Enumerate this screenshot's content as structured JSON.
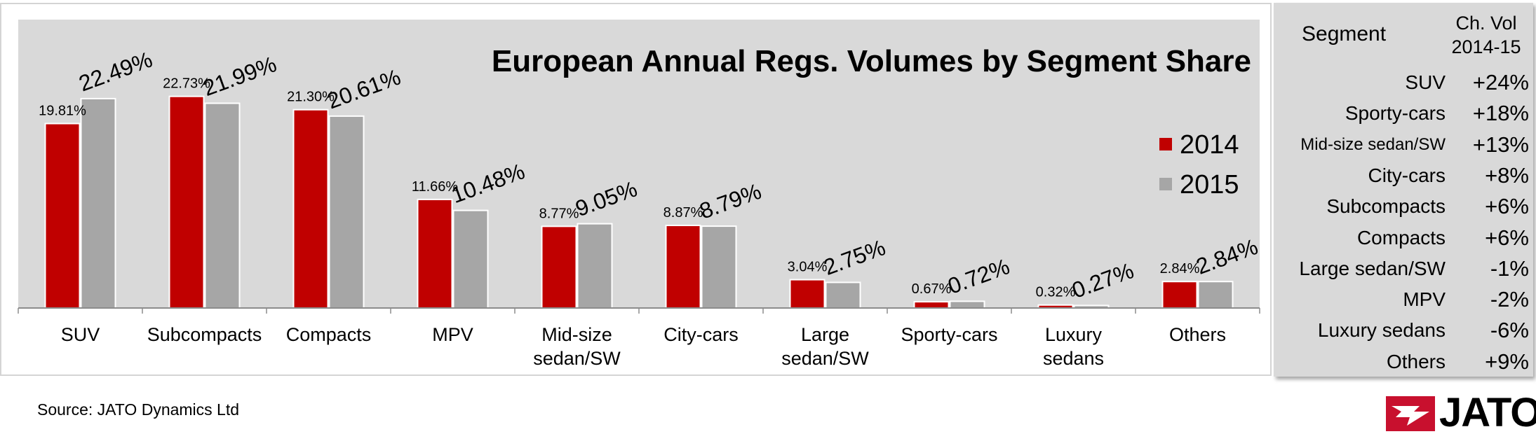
{
  "chart_data": {
    "type": "bar",
    "title": "European Annual Regs. Volumes by Segment Share",
    "categories": [
      "SUV",
      "Subcompacts",
      "Compacts",
      "MPV",
      "Mid-size sedan/SW",
      "City-cars",
      "Large sedan/SW",
      "Sporty-cars",
      "Luxury sedans",
      "Others"
    ],
    "category_labels": [
      [
        "SUV"
      ],
      [
        "Subcompacts"
      ],
      [
        "Compacts"
      ],
      [
        "MPV"
      ],
      [
        "Mid-size",
        "sedan/SW"
      ],
      [
        "City-cars"
      ],
      [
        "Large",
        "sedan/SW"
      ],
      [
        "Sporty-cars"
      ],
      [
        "Luxury",
        "sedans"
      ],
      [
        "Others"
      ]
    ],
    "series": [
      {
        "name": "2014",
        "values": [
          19.81,
          22.73,
          21.3,
          11.66,
          8.77,
          8.87,
          3.04,
          0.67,
          0.32,
          2.84
        ],
        "labels": [
          "19.81%",
          "22.73%",
          "21.30%",
          "11.66%",
          "8.77%",
          "8.87%",
          "3.04%",
          "0.67%",
          "0.32%",
          "2.84%"
        ]
      },
      {
        "name": "2015",
        "values": [
          22.49,
          21.99,
          20.61,
          10.48,
          9.05,
          8.79,
          2.75,
          0.72,
          0.27,
          2.84
        ],
        "labels": [
          "22.49%",
          "21.99%",
          "20.61%",
          "10.48%",
          "9.05%",
          "8.79%",
          "2.75%",
          "0.72%",
          "0.27%",
          "2.84%"
        ]
      }
    ],
    "ylim": [
      0,
      25
    ],
    "legend_position": "right",
    "grid": false
  },
  "colors": {
    "series_2014": "#c00000",
    "series_2015": "#a6a6a6",
    "plot_background": "#d9d9d9",
    "panel_background": "#d9d9d9",
    "logo_red": "#c8102e"
  },
  "panel": {
    "header_segment": "Segment",
    "header_change_line1": "Ch. Vol",
    "header_change_line2": "2014-15",
    "rows": [
      {
        "segment": "SUV",
        "change": "+24%"
      },
      {
        "segment": "Sporty-cars",
        "change": "+18%"
      },
      {
        "segment": "Mid-size sedan/SW",
        "change": "+13%"
      },
      {
        "segment": "City-cars",
        "change": "+8%"
      },
      {
        "segment": "Subcompacts",
        "change": "+6%"
      },
      {
        "segment": "Compacts",
        "change": "+6%"
      },
      {
        "segment": "Large sedan/SW",
        "change": "-1%"
      },
      {
        "segment": "MPV",
        "change": "-2%"
      },
      {
        "segment": "Luxury sedans",
        "change": "-6%"
      },
      {
        "segment": "Others",
        "change": "+9%"
      }
    ]
  },
  "footer": {
    "source": "Source: JATO Dynamics Ltd",
    "logo_text": "JATO",
    "logo_icon": "jato-arrow-logo-icon"
  }
}
